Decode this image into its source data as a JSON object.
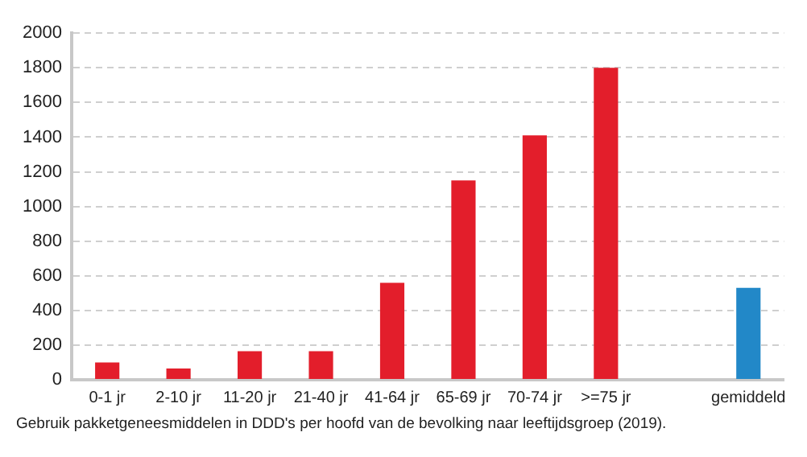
{
  "chart_data": {
    "type": "bar",
    "categories": [
      "0-1 jr",
      "2-10 jr",
      "11-20 jr",
      "21-40 jr",
      "41-64 jr",
      "65-69 jr",
      "70-74 jr",
      ">=75 jr",
      null,
      "gemiddeld"
    ],
    "values": [
      100,
      65,
      165,
      165,
      560,
      1150,
      1410,
      1800,
      null,
      530
    ],
    "colors": [
      "#e31e2b",
      "#e31e2b",
      "#e31e2b",
      "#e31e2b",
      "#e31e2b",
      "#e31e2b",
      "#e31e2b",
      "#e31e2b",
      "#e31e2b",
      "#2288c8"
    ],
    "ylim": [
      0,
      2000
    ],
    "yticks": [
      0,
      200,
      400,
      600,
      800,
      1000,
      1200,
      1400,
      1600,
      1800,
      2000
    ],
    "grid": "y",
    "annotations": [
      "Gebruik pakketgeneesmiddelen in DDD's per hoofd van de bevolking naar leeftijdsgroep (2019)."
    ]
  }
}
